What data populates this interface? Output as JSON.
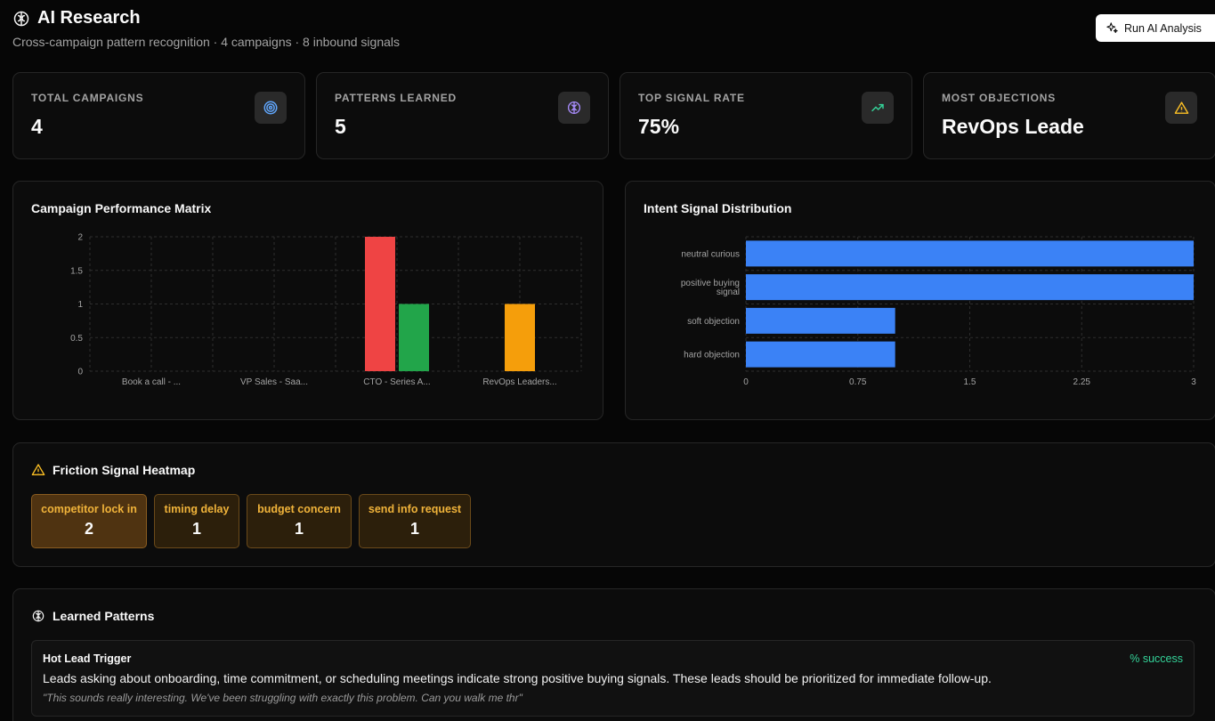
{
  "header": {
    "title": "AI Research",
    "subtitle": "Cross-campaign pattern recognition · 4 campaigns · 8 inbound signals",
    "run_button": "Run AI Analysis"
  },
  "stats": [
    {
      "label": "TOTAL CAMPAIGNS",
      "value": "4",
      "icon": "target-icon",
      "icon_color": "#60a5fa"
    },
    {
      "label": "PATTERNS LEARNED",
      "value": "5",
      "icon": "brain-icon",
      "icon_color": "#a78bfa"
    },
    {
      "label": "TOP SIGNAL RATE",
      "value": "75%",
      "icon": "trending-up-icon",
      "icon_color": "#34d399"
    },
    {
      "label": "MOST OBJECTIONS",
      "value": "RevOps Leade",
      "icon": "warning-icon",
      "icon_color": "#fbbf24"
    }
  ],
  "campaign_chart": {
    "title": "Campaign Performance Matrix",
    "chart_data": {
      "type": "bar",
      "categories": [
        "Book a call - ...",
        "VP Sales - Saa...",
        "CTO - Series A...",
        "RevOps Leaders..."
      ],
      "series": [
        {
          "color": "#ef4444",
          "values": [
            0,
            0,
            2,
            0
          ]
        },
        {
          "color": "#22a54a",
          "values": [
            0,
            0,
            1,
            0
          ]
        },
        {
          "color": "#f59e0b",
          "values": [
            0,
            0,
            0,
            1
          ]
        }
      ],
      "ylim": [
        0,
        2
      ],
      "yticks": [
        "0",
        "0.5",
        "1",
        "1.5",
        "2"
      ],
      "grid": true
    }
  },
  "intent_chart": {
    "title": "Intent Signal Distribution",
    "chart_data": {
      "type": "bar",
      "orientation": "horizontal",
      "categories": [
        [
          "neutral curious"
        ],
        [
          "positive buying",
          "signal"
        ],
        [
          "soft objection"
        ],
        [
          "hard objection"
        ]
      ],
      "values": [
        3,
        3,
        1,
        1
      ],
      "color": "#3b82f6",
      "xlim": [
        0,
        3
      ],
      "xticks": [
        "0",
        "0.75",
        "1.5",
        "2.25",
        "3"
      ],
      "grid": true
    }
  },
  "friction": {
    "title": "Friction Signal Heatmap",
    "items": [
      {
        "name": "competitor lock in",
        "count": "2"
      },
      {
        "name": "timing delay",
        "count": "1"
      },
      {
        "name": "budget concern",
        "count": "1"
      },
      {
        "name": "send info request",
        "count": "1"
      }
    ]
  },
  "patterns": {
    "title": "Learned Patterns",
    "items": [
      {
        "name": "Hot Lead Trigger",
        "success": "% success",
        "description": "Leads asking about onboarding, time commitment, or scheduling meetings indicate strong positive buying signals. These leads should be prioritized for immediate follow-up.",
        "quote": "\"This sounds really interesting. We've been struggling with exactly this problem. Can you walk me thr\""
      }
    ]
  }
}
